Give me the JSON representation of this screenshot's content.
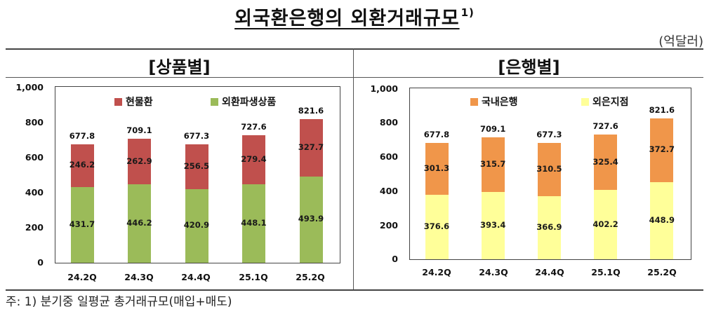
{
  "header": {
    "title": "외국환은행의 외환거래규모",
    "title_footnote": "1)",
    "unit": "(억달러)"
  },
  "panels": [
    {
      "heading": "[상품별]",
      "legend": [
        {
          "label": "현물환",
          "color": "#c0504d"
        },
        {
          "label": "외환파생상품",
          "color": "#9bbb59"
        }
      ],
      "y_ticks": [
        "1,000",
        "800",
        "600",
        "400",
        "200",
        "0"
      ],
      "x_labels": [
        "24.2Q",
        "24.3Q",
        "24.4Q",
        "25.1Q",
        "25.2Q"
      ]
    },
    {
      "heading": "[은행별]",
      "legend": [
        {
          "label": "국내은행",
          "color": "#f0964a"
        },
        {
          "label": "외은지점",
          "color": "#ffff99"
        }
      ],
      "y_ticks": [
        "1,000",
        "800",
        "600",
        "400",
        "200",
        "0"
      ],
      "x_labels": [
        "24.2Q",
        "24.3Q",
        "24.4Q",
        "25.1Q",
        "25.2Q"
      ]
    }
  ],
  "footnote": "주: 1) 분기중 일평균 총거래규모(매입+매도)",
  "chart_data": [
    {
      "type": "bar",
      "stacked": true,
      "title": "[상품별]",
      "xlabel": "",
      "ylabel": "억달러",
      "ylim": [
        0,
        1000
      ],
      "yticks": [
        0,
        200,
        400,
        600,
        800,
        1000
      ],
      "grid": false,
      "legend_position": "top",
      "categories": [
        "24.2Q",
        "24.3Q",
        "24.4Q",
        "25.1Q",
        "25.2Q"
      ],
      "series": [
        {
          "name": "외환파생상품",
          "color": "#9bbb59",
          "values": [
            431.7,
            446.2,
            420.9,
            448.1,
            493.9
          ]
        },
        {
          "name": "현물환",
          "color": "#c0504d",
          "values": [
            246.2,
            262.9,
            256.5,
            279.4,
            327.7
          ]
        }
      ],
      "totals": [
        677.8,
        709.1,
        677.3,
        727.6,
        821.6
      ]
    },
    {
      "type": "bar",
      "stacked": true,
      "title": "[은행별]",
      "xlabel": "",
      "ylabel": "억달러",
      "ylim": [
        0,
        1000
      ],
      "yticks": [
        0,
        200,
        400,
        600,
        800,
        1000
      ],
      "grid": false,
      "legend_position": "top",
      "categories": [
        "24.2Q",
        "24.3Q",
        "24.4Q",
        "25.1Q",
        "25.2Q"
      ],
      "series": [
        {
          "name": "외은지점",
          "color": "#ffff99",
          "values": [
            376.6,
            393.4,
            366.9,
            402.2,
            448.9
          ]
        },
        {
          "name": "국내은행",
          "color": "#f0964a",
          "values": [
            301.3,
            315.7,
            310.5,
            325.4,
            372.7
          ]
        }
      ],
      "totals": [
        677.8,
        709.1,
        677.3,
        727.6,
        821.6
      ]
    }
  ]
}
